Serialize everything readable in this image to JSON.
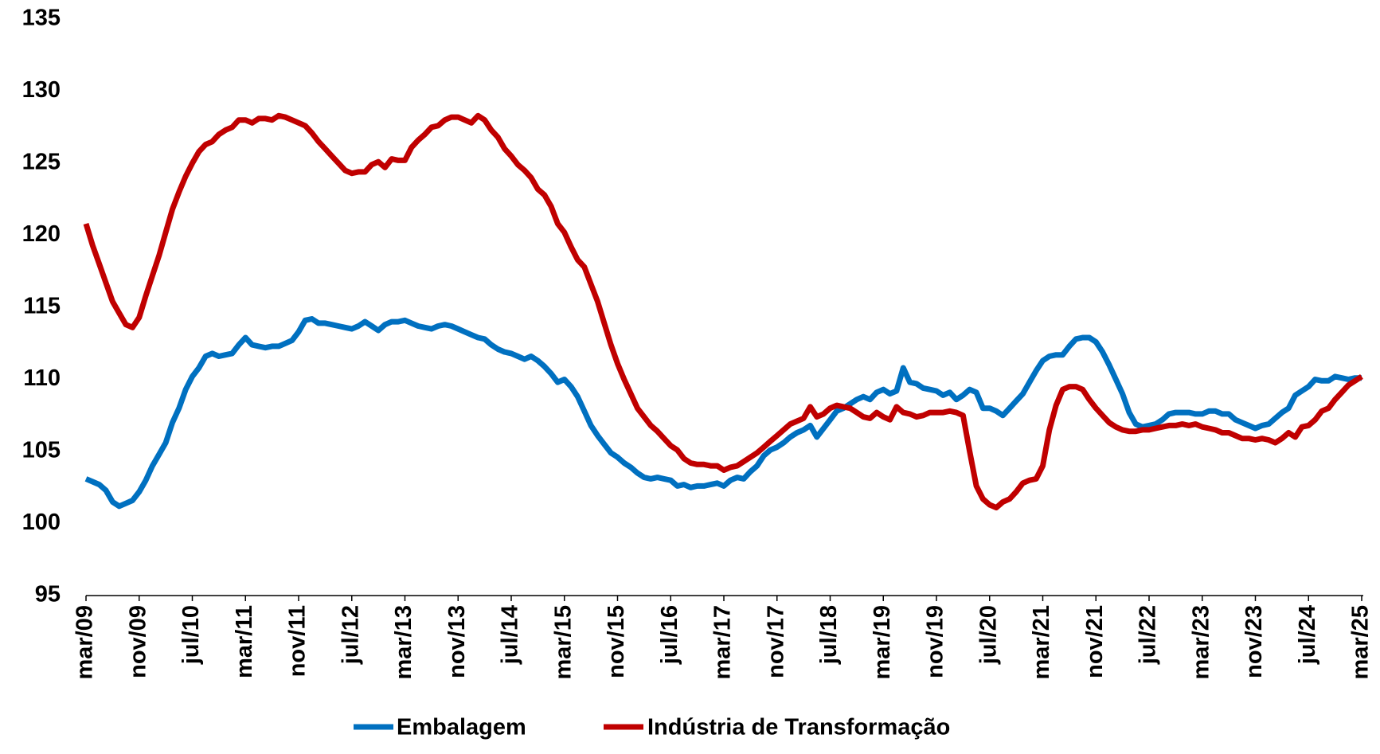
{
  "chart_data": {
    "type": "line",
    "categories": [
      "mar/09",
      null,
      null,
      null,
      null,
      null,
      null,
      null,
      "nov/09",
      null,
      null,
      null,
      null,
      null,
      null,
      null,
      "jul/10",
      null,
      null,
      null,
      null,
      null,
      null,
      null,
      "mar/11",
      null,
      null,
      null,
      null,
      null,
      null,
      null,
      "nov/11",
      null,
      null,
      null,
      null,
      null,
      null,
      null,
      "jul/12",
      null,
      null,
      null,
      null,
      null,
      null,
      null,
      "mar/13",
      null,
      null,
      null,
      null,
      null,
      null,
      null,
      "nov/13",
      null,
      null,
      null,
      null,
      null,
      null,
      null,
      "jul/14",
      null,
      null,
      null,
      null,
      null,
      null,
      null,
      "mar/15",
      null,
      null,
      null,
      null,
      null,
      null,
      null,
      "nov/15",
      null,
      null,
      null,
      null,
      null,
      null,
      null,
      "jul/16",
      null,
      null,
      null,
      null,
      null,
      null,
      null,
      "mar/17",
      null,
      null,
      null,
      null,
      null,
      null,
      null,
      "nov/17",
      null,
      null,
      null,
      null,
      null,
      null,
      null,
      "jul/18",
      null,
      null,
      null,
      null,
      null,
      null,
      null,
      "mar/19",
      null,
      null,
      null,
      null,
      null,
      null,
      null,
      "nov/19",
      null,
      null,
      null,
      null,
      null,
      null,
      null,
      "jul/20",
      null,
      null,
      null,
      null,
      null,
      null,
      null,
      "mar/21",
      null,
      null,
      null,
      null,
      null,
      null,
      null,
      "nov/21",
      null,
      null,
      null,
      null,
      null,
      null,
      null,
      "jul/22",
      null,
      null,
      null,
      null,
      null,
      null,
      null,
      "mar/23",
      null,
      null,
      null,
      null,
      null,
      null,
      null,
      "nov/23",
      null,
      null,
      null,
      null,
      null,
      null,
      null,
      "jul/24",
      null,
      null,
      null,
      null,
      null,
      null,
      null,
      "mar/25"
    ],
    "series": [
      {
        "name": "Embalagem",
        "color": "#0070c0",
        "values": [
          103.1,
          102.9,
          102.7,
          102.3,
          101.5,
          101.2,
          101.4,
          101.6,
          102.2,
          103.0,
          104.0,
          104.8,
          105.6,
          107.0,
          108.0,
          109.3,
          110.2,
          110.8,
          111.6,
          111.8,
          111.6,
          111.7,
          111.8,
          112.4,
          112.9,
          112.4,
          112.3,
          112.2,
          112.3,
          112.3,
          112.5,
          112.7,
          113.3,
          114.1,
          114.2,
          113.9,
          113.9,
          113.8,
          113.7,
          113.6,
          113.5,
          113.7,
          114.0,
          113.7,
          113.4,
          113.8,
          114.0,
          114.0,
          114.1,
          113.9,
          113.7,
          113.6,
          113.5,
          113.7,
          113.8,
          113.7,
          113.5,
          113.3,
          113.1,
          112.9,
          112.8,
          112.4,
          112.1,
          111.9,
          111.8,
          111.6,
          111.4,
          111.6,
          111.3,
          110.9,
          110.4,
          109.8,
          110.0,
          109.5,
          108.8,
          107.8,
          106.8,
          106.1,
          105.5,
          104.9,
          104.6,
          104.2,
          103.9,
          103.5,
          103.2,
          103.1,
          103.2,
          103.1,
          103.0,
          102.6,
          102.7,
          102.5,
          102.6,
          102.6,
          102.7,
          102.8,
          102.6,
          103.0,
          103.2,
          103.1,
          103.6,
          104.0,
          104.7,
          105.1,
          105.3,
          105.6,
          106.0,
          106.3,
          106.5,
          106.8,
          106.0,
          106.6,
          107.2,
          107.8,
          108.0,
          108.3,
          108.6,
          108.8,
          108.6,
          109.1,
          109.3,
          109.0,
          109.2,
          110.8,
          109.8,
          109.7,
          109.4,
          109.3,
          109.2,
          108.9,
          109.1,
          108.6,
          108.9,
          109.3,
          109.1,
          108.0,
          108.0,
          107.8,
          107.5,
          108.0,
          108.5,
          109.0,
          109.8,
          110.6,
          111.3,
          111.6,
          111.7,
          111.7,
          112.3,
          112.8,
          112.9,
          112.9,
          112.6,
          111.9,
          111.0,
          110.0,
          109.0,
          107.7,
          106.9,
          106.7,
          106.8,
          106.9,
          107.2,
          107.6,
          107.7,
          107.7,
          107.7,
          107.6,
          107.6,
          107.8,
          107.8,
          107.6,
          107.6,
          107.2,
          107.0,
          106.8,
          106.6,
          106.8,
          106.9,
          107.3,
          107.7,
          108.0,
          108.9,
          109.2,
          109.5,
          110.0,
          109.9,
          109.9,
          110.2,
          110.1,
          110.0,
          110.1,
          110.1
        ]
      },
      {
        "name": "Indústria de Transformação",
        "color": "#c00000",
        "values": [
          120.8,
          119.3,
          118.0,
          116.7,
          115.4,
          114.6,
          113.8,
          113.6,
          114.3,
          115.8,
          117.2,
          118.6,
          120.2,
          121.8,
          123.0,
          124.1,
          125.0,
          125.8,
          126.3,
          126.5,
          127.0,
          127.3,
          127.5,
          128.0,
          128.0,
          127.8,
          128.1,
          128.1,
          128.0,
          128.3,
          128.2,
          128.0,
          127.8,
          127.6,
          127.1,
          126.5,
          126.0,
          125.5,
          125.0,
          124.5,
          124.3,
          124.4,
          124.4,
          124.9,
          125.1,
          124.7,
          125.3,
          125.2,
          125.2,
          126.1,
          126.6,
          127.0,
          127.5,
          127.6,
          128.0,
          128.2,
          128.2,
          128.0,
          127.8,
          128.3,
          128.0,
          127.3,
          126.8,
          126.0,
          125.5,
          124.9,
          124.5,
          124.0,
          123.2,
          122.8,
          122.0,
          120.8,
          120.2,
          119.2,
          118.3,
          117.8,
          116.6,
          115.4,
          113.9,
          112.4,
          111.1,
          110.0,
          109.0,
          108.0,
          107.4,
          106.8,
          106.4,
          105.9,
          105.4,
          105.1,
          104.5,
          104.2,
          104.1,
          104.1,
          104.0,
          104.0,
          103.7,
          103.9,
          104.0,
          104.3,
          104.6,
          104.9,
          105.3,
          105.7,
          106.1,
          106.5,
          106.9,
          107.1,
          107.3,
          108.1,
          107.4,
          107.6,
          108.0,
          108.2,
          108.1,
          108.0,
          107.7,
          107.4,
          107.3,
          107.7,
          107.4,
          107.2,
          108.1,
          107.7,
          107.6,
          107.4,
          107.5,
          107.7,
          107.7,
          107.7,
          107.8,
          107.7,
          107.5,
          105.0,
          102.6,
          101.7,
          101.3,
          101.1,
          101.5,
          101.7,
          102.2,
          102.8,
          103.0,
          103.1,
          104.0,
          106.5,
          108.2,
          109.3,
          109.5,
          109.5,
          109.3,
          108.6,
          108.0,
          107.5,
          107.0,
          106.7,
          106.5,
          106.4,
          106.4,
          106.5,
          106.5,
          106.6,
          106.7,
          106.8,
          106.8,
          106.9,
          106.8,
          106.9,
          106.7,
          106.6,
          106.5,
          106.3,
          106.3,
          106.1,
          105.9,
          105.9,
          105.8,
          105.9,
          105.8,
          105.6,
          105.9,
          106.3,
          106.0,
          106.7,
          106.8,
          107.2,
          107.8,
          108.0,
          108.6,
          109.1,
          109.6,
          109.9,
          110.2
        ]
      }
    ],
    "ylim": [
      95,
      135
    ],
    "yticks": [
      95,
      100,
      105,
      110,
      115,
      120,
      125,
      130,
      135
    ],
    "grid": false,
    "legend": "bottom"
  }
}
